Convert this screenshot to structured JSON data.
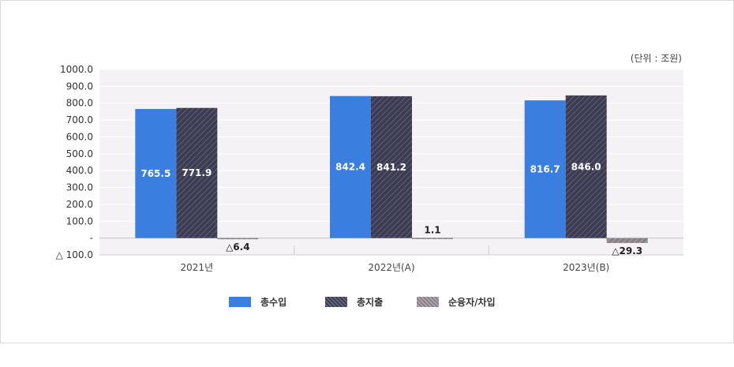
{
  "chart_data": {
    "type": "bar",
    "unit_note": "(단위 : 조원)",
    "categories": [
      "2021년",
      "2022년(A)",
      "2023년(B)"
    ],
    "series": [
      {
        "name": "총수입",
        "values": [
          765.5,
          842.4,
          816.7
        ],
        "labels": [
          "765.5",
          "842.4",
          "816.7"
        ]
      },
      {
        "name": "총지출",
        "values": [
          771.9,
          841.2,
          846.0
        ],
        "labels": [
          "771.9",
          "841.2",
          "846.0"
        ]
      },
      {
        "name": "순융자/차입",
        "values": [
          -6.4,
          1.1,
          -29.3
        ],
        "labels": [
          "△6.4",
          "1.1",
          "△29.3"
        ]
      }
    ],
    "y_ticks": [
      {
        "value": 1000,
        "label": "1000.0"
      },
      {
        "value": 900,
        "label": "900.0"
      },
      {
        "value": 800,
        "label": "800.0"
      },
      {
        "value": 700,
        "label": "700.0"
      },
      {
        "value": 600,
        "label": "600.0"
      },
      {
        "value": 500,
        "label": "500.0"
      },
      {
        "value": 400,
        "label": "400.0"
      },
      {
        "value": 300,
        "label": "300.0"
      },
      {
        "value": 200,
        "label": "200.0"
      },
      {
        "value": 100,
        "label": "100.0"
      },
      {
        "value": 0,
        "label": "-"
      },
      {
        "value": -100,
        "label": "△  100.0"
      }
    ],
    "ylim": [
      -100,
      1000
    ],
    "grid": true,
    "legend_position": "bottom",
    "colors": {
      "total_revenue": "#3a7ee0",
      "total_expenditure": "#3c3c52",
      "net_lending": "#8a8088",
      "plot_background": "#f4f2f4"
    }
  }
}
